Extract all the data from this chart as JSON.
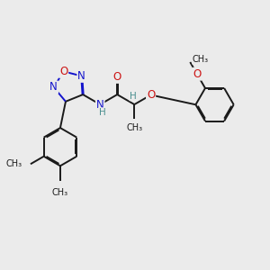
{
  "bg_color": "#ebebeb",
  "bond_color": "#1a1a1a",
  "N_color": "#1414cc",
  "O_color": "#cc1414",
  "H_color": "#4a8f8f",
  "font_size": 8.5,
  "small_font": 7.5,
  "line_width": 1.4,
  "dbo": 0.018,
  "xlim": [
    0,
    10
  ],
  "ylim": [
    0,
    10
  ]
}
